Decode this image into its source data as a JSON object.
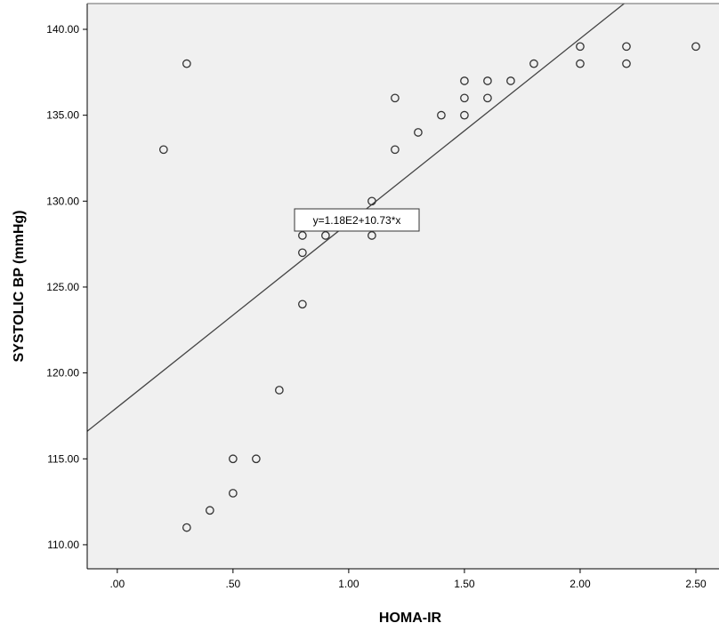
{
  "chart_data": {
    "type": "scatter",
    "xlabel": "HOMA-IR",
    "ylabel": "SYSTOLIC BP (mmHg)",
    "x_ticks": [
      ".00",
      ".50",
      "1.00",
      "1.50",
      "2.00",
      "2.50"
    ],
    "y_ticks": [
      "110.00",
      "115.00",
      "120.00",
      "125.00",
      "130.00",
      "135.00",
      "140.00"
    ],
    "xlim": [
      -0.13,
      2.6
    ],
    "ylim": [
      108.6,
      141.5
    ],
    "grid": false,
    "colors": {
      "plot_background": "#f0f0f0",
      "marker_edge": "#333333",
      "fit_line": "#444444",
      "axis": "#000000"
    },
    "points": [
      {
        "x": 0.2,
        "y": 133
      },
      {
        "x": 0.3,
        "y": 138
      },
      {
        "x": 0.3,
        "y": 111
      },
      {
        "x": 0.4,
        "y": 112
      },
      {
        "x": 0.5,
        "y": 115
      },
      {
        "x": 0.5,
        "y": 113
      },
      {
        "x": 0.6,
        "y": 115
      },
      {
        "x": 0.7,
        "y": 119
      },
      {
        "x": 0.8,
        "y": 128
      },
      {
        "x": 0.8,
        "y": 127
      },
      {
        "x": 0.8,
        "y": 124
      },
      {
        "x": 0.9,
        "y": 128
      },
      {
        "x": 1.1,
        "y": 130
      },
      {
        "x": 1.1,
        "y": 128
      },
      {
        "x": 1.2,
        "y": 136
      },
      {
        "x": 1.2,
        "y": 133
      },
      {
        "x": 1.3,
        "y": 134
      },
      {
        "x": 1.4,
        "y": 135
      },
      {
        "x": 1.5,
        "y": 137
      },
      {
        "x": 1.5,
        "y": 136
      },
      {
        "x": 1.5,
        "y": 135
      },
      {
        "x": 1.6,
        "y": 137
      },
      {
        "x": 1.6,
        "y": 136
      },
      {
        "x": 1.7,
        "y": 137
      },
      {
        "x": 1.8,
        "y": 138
      },
      {
        "x": 2.0,
        "y": 139
      },
      {
        "x": 2.0,
        "y": 138
      },
      {
        "x": 2.2,
        "y": 139
      },
      {
        "x": 2.2,
        "y": 138
      },
      {
        "x": 2.5,
        "y": 139
      }
    ],
    "fit_line": {
      "intercept": 118,
      "slope": 10.73,
      "label": "y=1.18E2+10.73*x"
    }
  }
}
